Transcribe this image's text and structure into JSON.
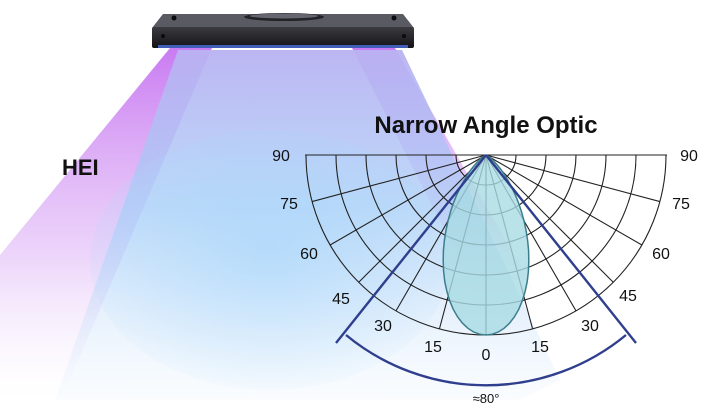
{
  "brand_label": "HEI",
  "diagram_title": "Narrow Angle Optic",
  "beam_spread_label": "≈80°",
  "angle_labels": {
    "left": [
      "90",
      "75",
      "60",
      "45",
      "30",
      "15"
    ],
    "center": "0",
    "right": [
      "15",
      "30",
      "45",
      "60",
      "75",
      "90"
    ]
  },
  "colors": {
    "beam_blue": "#8ec5f5",
    "beam_purple": "#c06cf0",
    "fixture_body": "#1c1c20",
    "fixture_led_glow": "#4a6bd8",
    "grid_line": "#222222",
    "beam_pattern_fill": "#a8dbe4",
    "beam_pattern_stroke": "#3d7e8e",
    "spread_line": "#2f3f8e"
  },
  "icons": {
    "fixture": "led-light-fixture-icon"
  }
}
